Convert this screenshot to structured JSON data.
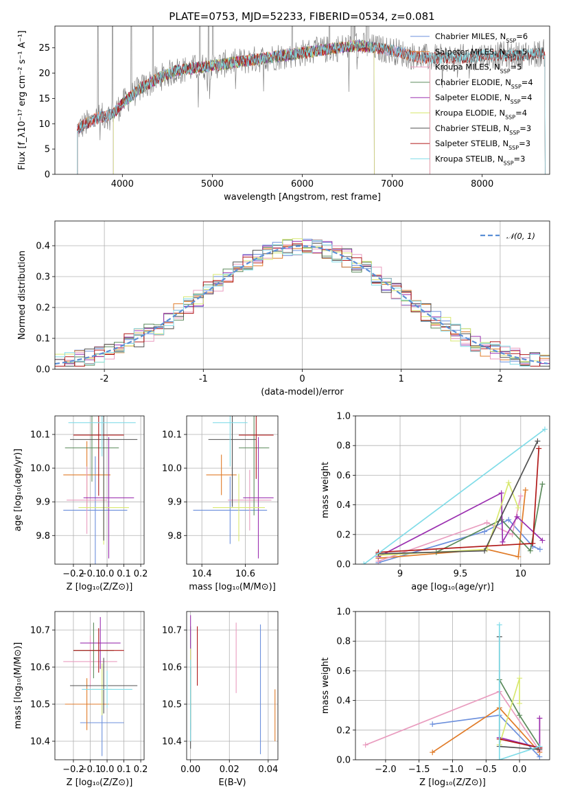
{
  "figure": {
    "title": "PLATE=0753, MJD=52233, FIBERID=0534, z=0.081"
  },
  "series_colors": {
    "Chabrier MILES": "#6b8fdc",
    "Salpeter MILES": "#e07b28",
    "Kroupa MILES": "#e99cbf",
    "Chabrier ELODIE": "#5a8a5a",
    "Salpeter ELODIE": "#9b30b0",
    "Kroupa ELODIE": "#d8e870",
    "Chabrier STELIB": "#505050",
    "Salpeter STELIB": "#b01818",
    "Kroupa STELIB": "#80dce8"
  },
  "chart_data": [
    {
      "id": "spectrum",
      "type": "line",
      "title": "PLATE=0753, MJD=52233, FIBERID=0534, z=0.081",
      "xlabel": "wavelength [Angstrom, rest frame]",
      "ylabel": "Flux [f_λ10⁻¹⁷ erg cm⁻² s⁻¹ A⁻¹]",
      "xlim": [
        3250,
        8750
      ],
      "ylim": [
        0,
        29.3
      ],
      "xticks": [
        4000,
        5000,
        6000,
        7000,
        8000
      ],
      "yticks": [
        0,
        5,
        10,
        15,
        20,
        25
      ],
      "grid": false,
      "legend_position": "right",
      "legend": [
        {
          "series": "Chabrier MILES",
          "label": "Chabrier MILES, N_SSP=6"
        },
        {
          "series": "Salpeter MILES",
          "label": "Salpeter MILES, N_SSP=5"
        },
        {
          "series": "Kroupa MILES",
          "label": "Kroupa MILES, N_SSP=5"
        },
        {
          "series": "Chabrier ELODIE",
          "label": "Chabrier ELODIE, N_SSP=4"
        },
        {
          "series": "Salpeter ELODIE",
          "label": "Salpeter ELODIE, N_SSP=4"
        },
        {
          "series": "Kroupa ELODIE",
          "label": "Kroupa ELODIE, N_SSP=4"
        },
        {
          "series": "Chabrier STELIB",
          "label": "Chabrier STELIB, N_SSP=3"
        },
        {
          "series": "Salpeter STELIB",
          "label": "Salpeter STELIB, N_SSP=3"
        },
        {
          "series": "Kroupa STELIB",
          "label": "Kroupa STELIB, N_SSP=3"
        }
      ],
      "continuum": {
        "x": [
          3500,
          3700,
          3900,
          4000,
          4200,
          4400,
          4600,
          4800,
          5000,
          5200,
          5400,
          5600,
          5800,
          6000,
          6200,
          6400,
          6600,
          6800,
          7000,
          7200,
          7400,
          7600,
          7800,
          8000,
          8200,
          8400,
          8700
        ],
        "y": [
          9,
          11,
          12,
          14,
          17,
          19,
          20.5,
          21,
          21.5,
          22,
          22.5,
          23,
          23.5,
          24,
          24.5,
          25,
          25.5,
          25,
          24.5,
          23.5,
          23,
          23,
          23,
          23.5,
          23.5,
          23.5,
          24
        ]
      },
      "observed_range": [
        3500,
        8700
      ],
      "model_ranges": {
        "Chabrier MILES": [
          3500,
          7420
        ],
        "Salpeter MILES": [
          3500,
          7420
        ],
        "Kroupa MILES": [
          3500,
          7420
        ],
        "Chabrier ELODIE": [
          3900,
          6800
        ],
        "Salpeter ELODIE": [
          3900,
          6800
        ],
        "Kroupa ELODIE": [
          3900,
          6800
        ],
        "Chabrier STELIB": [
          3500,
          8700
        ],
        "Salpeter STELIB": [
          3500,
          8700
        ],
        "Kroupa STELIB": [
          3500,
          8700
        ]
      },
      "emission_lines": [
        3727,
        3890,
        4102,
        4340,
        4861,
        4959,
        5007,
        5890,
        6300,
        6548,
        6563,
        6583,
        6717,
        6731
      ]
    },
    {
      "id": "residuals",
      "type": "histogram",
      "xlabel": "(data-model)/error",
      "ylabel": "Normed distribution",
      "xlim": [
        -2.5,
        2.5
      ],
      "ylim": [
        0,
        0.48
      ],
      "xticks": [
        -2,
        -1,
        0,
        1,
        2
      ],
      "yticks": [
        0.0,
        0.1,
        0.2,
        0.3,
        0.4
      ],
      "grid": true,
      "legend_position": "top-right",
      "reference_curve": {
        "label": "𝒩(0, 1)",
        "mean": 0,
        "sigma": 1,
        "style": "dashed",
        "color": "#5b8fd6"
      },
      "bin_width": 0.1
    },
    {
      "id": "age-vs-Z",
      "type": "errorbar",
      "xlabel": "Z [log₁₀(Z/Z⊙)]",
      "ylabel": "age  [log₁₀(age/yr)]",
      "xlim": [
        -0.31,
        0.22
      ],
      "ylim": [
        9.715,
        10.155
      ],
      "xticks": [
        -0.2,
        -0.1,
        0.0,
        0.1,
        0.2
      ],
      "xtick_labels": [
        "−0.2",
        "−0.1",
        "0.0",
        "0.1",
        "0.2"
      ],
      "yticks": [
        9.8,
        9.9,
        10.0,
        10.1
      ],
      "grid": true,
      "points": [
        {
          "series": "Chabrier MILES",
          "x": -0.07,
          "y": 9.875,
          "xerr": 0.19,
          "yerr": 0.16
        },
        {
          "series": "Salpeter MILES",
          "x": -0.12,
          "y": 9.98,
          "xerr": 0.14,
          "yerr": 0.1
        },
        {
          "series": "Kroupa MILES",
          "x": -0.12,
          "y": 9.905,
          "xerr": 0.12,
          "yerr": 0.1
        },
        {
          "series": "Chabrier ELODIE",
          "x": -0.09,
          "y": 10.06,
          "xerr": 0.16,
          "yerr": 0.1
        },
        {
          "series": "Salpeter ELODIE",
          "x": 0.01,
          "y": 9.912,
          "xerr": 0.15,
          "yerr": 0.18
        },
        {
          "series": "Kroupa ELODIE",
          "x": -0.02,
          "y": 9.883,
          "xerr": 0.15,
          "yerr": 0.11
        },
        {
          "series": "Chabrier STELIB",
          "x": -0.02,
          "y": 10.085,
          "xerr": 0.2,
          "yerr": 0.3
        },
        {
          "series": "Salpeter STELIB",
          "x": -0.05,
          "y": 10.098,
          "xerr": 0.15,
          "yerr": 0.18
        },
        {
          "series": "Kroupa STELIB",
          "x": -0.03,
          "y": 10.135,
          "xerr": 0.2,
          "yerr": 0.1
        }
      ]
    },
    {
      "id": "age-vs-mass",
      "type": "errorbar",
      "xlabel": "mass [log₁₀(M/M⊙)]",
      "xlim": [
        10.33,
        10.75
      ],
      "ylim": [
        9.715,
        10.155
      ],
      "xticks": [
        10.4,
        10.6
      ],
      "yticks": [
        9.8,
        9.9,
        10.0,
        10.1
      ],
      "grid": true,
      "points": [
        {
          "series": "Chabrier MILES",
          "x": 10.53,
          "y": 9.875,
          "xerr": 0.17,
          "yerr": 0.1
        },
        {
          "series": "Salpeter MILES",
          "x": 10.49,
          "y": 9.98,
          "xerr": 0.07,
          "yerr": 0.06
        },
        {
          "series": "Kroupa MILES",
          "x": 10.62,
          "y": 9.905,
          "xerr": 0.1,
          "yerr": 0.09
        },
        {
          "series": "Chabrier ELODIE",
          "x": 10.64,
          "y": 10.06,
          "xerr": 0.07,
          "yerr": 0.2
        },
        {
          "series": "Salpeter ELODIE",
          "x": 10.66,
          "y": 9.912,
          "xerr": 0.07,
          "yerr": 0.18
        },
        {
          "series": "Kroupa ELODIE",
          "x": 10.57,
          "y": 9.883,
          "xerr": 0.12,
          "yerr": 0.1
        },
        {
          "series": "Chabrier STELIB",
          "x": 10.54,
          "y": 10.085,
          "xerr": 0.11,
          "yerr": 0.2
        },
        {
          "series": "Salpeter STELIB",
          "x": 10.65,
          "y": 10.098,
          "xerr": 0.08,
          "yerr": 0.13
        },
        {
          "series": "Kroupa STELIB",
          "x": 10.53,
          "y": 10.135,
          "xerr": 0.08,
          "yerr": 0.13
        }
      ]
    },
    {
      "id": "mass-weight-vs-age",
      "type": "line",
      "xlabel": "age  [log₁₀(age/yr)]",
      "ylabel": "mass weight",
      "xlim": [
        8.63,
        10.24
      ],
      "ylim": [
        0.0,
        1.0
      ],
      "xticks": [
        9.0,
        9.5,
        10.0
      ],
      "yticks": [
        0.0,
        0.2,
        0.4,
        0.6,
        0.8,
        1.0
      ],
      "grid": true,
      "series": [
        {
          "name": "Chabrier MILES",
          "x": [
            8.82,
            9.7,
            9.9,
            10.1,
            10.16
          ],
          "y": [
            0.01,
            0.22,
            0.3,
            0.12,
            0.1
          ]
        },
        {
          "name": "Salpeter MILES",
          "x": [
            8.82,
            9.72,
            9.98,
            10.04
          ],
          "y": [
            0.04,
            0.1,
            0.05,
            0.5
          ]
        },
        {
          "name": "Kroupa MILES",
          "x": [
            8.82,
            9.72,
            9.93,
            10.0
          ],
          "y": [
            0.02,
            0.28,
            0.2,
            0.46
          ]
        },
        {
          "name": "Chabrier ELODIE",
          "x": [
            9.3,
            9.84,
            10.08,
            10.18
          ],
          "y": [
            0.08,
            0.3,
            0.09,
            0.54
          ]
        },
        {
          "name": "Salpeter ELODIE",
          "x": [
            8.82,
            9.84,
            9.85,
            9.97,
            10.18
          ],
          "y": [
            0.05,
            0.48,
            0.15,
            0.32,
            0.16
          ]
        },
        {
          "name": "Kroupa ELODIE",
          "x": [
            8.82,
            9.72,
            9.9,
            9.98
          ],
          "y": [
            0.06,
            0.1,
            0.55,
            0.38
          ]
        },
        {
          "name": "Chabrier STELIB",
          "x": [
            8.82,
            9.7,
            10.14
          ],
          "y": [
            0.07,
            0.09,
            0.83
          ]
        },
        {
          "name": "Salpeter STELIB",
          "x": [
            8.82,
            10.1,
            10.15
          ],
          "y": [
            0.08,
            0.14,
            0.78
          ]
        },
        {
          "name": "Kroupa STELIB",
          "x": [
            8.7,
            10.2
          ],
          "y": [
            0.0,
            0.91
          ]
        }
      ]
    },
    {
      "id": "mass-vs-Z",
      "type": "errorbar",
      "xlabel": "Z [log₁₀(Z/Z⊙)]",
      "ylabel": "mass [log₁₀(M/M⊙)]",
      "xlim": [
        -0.31,
        0.22
      ],
      "ylim": [
        10.35,
        10.75
      ],
      "xticks": [
        -0.2,
        -0.1,
        0.0,
        0.1,
        0.2
      ],
      "xtick_labels": [
        "−0.2",
        "−0.1",
        "0.0",
        "0.1",
        "0.2"
      ],
      "yticks": [
        10.4,
        10.5,
        10.6,
        10.7
      ],
      "grid": true,
      "points": [
        {
          "series": "Chabrier MILES",
          "x": -0.03,
          "y": 10.45,
          "xerr": 0.13,
          "yerr": 0.09
        },
        {
          "series": "Salpeter MILES",
          "x": -0.12,
          "y": 10.5,
          "xerr": 0.13,
          "yerr": 0.07
        },
        {
          "series": "Kroupa MILES",
          "x": -0.1,
          "y": 10.615,
          "xerr": 0.16,
          "yerr": 0.07
        },
        {
          "series": "Chabrier ELODIE",
          "x": -0.08,
          "y": 10.645,
          "xerr": 0.12,
          "yerr": 0.075
        },
        {
          "series": "Salpeter ELODIE",
          "x": -0.04,
          "y": 10.665,
          "xerr": 0.12,
          "yerr": 0.07
        },
        {
          "series": "Kroupa ELODIE",
          "x": -0.03,
          "y": 10.54,
          "xerr": 0.06,
          "yerr": 0.07
        },
        {
          "series": "Chabrier STELIB",
          "x": -0.02,
          "y": 10.55,
          "xerr": 0.2,
          "yerr": 0.075
        },
        {
          "series": "Salpeter STELIB",
          "x": -0.05,
          "y": 10.645,
          "xerr": 0.15,
          "yerr": 0.06
        },
        {
          "series": "Kroupa STELIB",
          "x": 0.0,
          "y": 10.54,
          "xerr": 0.15,
          "yerr": 0.05
        }
      ]
    },
    {
      "id": "mass-vs-ebv",
      "type": "errorbar",
      "xlabel": "E(B-V)",
      "xlim": [
        -0.002,
        0.045
      ],
      "ylim": [
        10.35,
        10.75
      ],
      "xticks": [
        0.0,
        0.02,
        0.04
      ],
      "xtick_labels": [
        "0.00",
        "0.02",
        "0.04"
      ],
      "yticks": [
        10.4,
        10.5,
        10.6,
        10.7
      ],
      "grid": true,
      "points": [
        {
          "series": "Chabrier MILES",
          "x": 0.036,
          "y": 10.54,
          "xerr": 0.0,
          "yerr": 0.175
        },
        {
          "series": "Salpeter MILES",
          "x": 0.0435,
          "y": 10.47,
          "xerr": 0.0,
          "yerr": 0.07
        },
        {
          "series": "Kroupa MILES",
          "x": 0.0235,
          "y": 10.625,
          "xerr": 0.0,
          "yerr": 0.095
        },
        {
          "series": "Chabrier ELODIE",
          "x": 0.0,
          "y": 10.57,
          "xerr": 0.0,
          "yerr": 0.14
        },
        {
          "series": "Salpeter ELODIE",
          "x": 0.0,
          "y": 10.66,
          "xerr": 0.0,
          "yerr": 0.08
        },
        {
          "series": "Kroupa ELODIE",
          "x": 0.0,
          "y": 10.55,
          "xerr": 0.0,
          "yerr": 0.1
        },
        {
          "series": "Chabrier STELIB",
          "x": 0.0,
          "y": 10.49,
          "xerr": 0.0,
          "yerr": 0.11
        },
        {
          "series": "Salpeter STELIB",
          "x": 0.0035,
          "y": 10.63,
          "xerr": 0.0,
          "yerr": 0.08
        },
        {
          "series": "Kroupa STELIB",
          "x": 0.0,
          "y": 10.51,
          "xerr": 0.0,
          "yerr": 0.11
        }
      ]
    },
    {
      "id": "mass-weight-vs-Z",
      "type": "line",
      "xlabel": "Z [log₁₀(Z/Z⊙)]",
      "ylabel": "mass weight",
      "xlim": [
        -2.45,
        0.45
      ],
      "ylim": [
        0.0,
        1.0
      ],
      "xticks": [
        -2.0,
        -1.5,
        -1.0,
        -0.5,
        0.0
      ],
      "xtick_labels": [
        "−2.0",
        "−1.5",
        "−1.0",
        "−0.5",
        "0.0"
      ],
      "yticks": [
        0.0,
        0.2,
        0.4,
        0.6,
        0.8,
        1.0
      ],
      "grid": true,
      "series": [
        {
          "name": "Chabrier MILES",
          "x": [
            -1.3,
            -0.3,
            0.3
          ],
          "y": [
            0.24,
            0.3,
            0.02
          ]
        },
        {
          "name": "Salpeter MILES",
          "x": [
            -1.3,
            -0.3,
            0.3,
            0.3
          ],
          "y": [
            0.05,
            0.35,
            0.05,
            0.08
          ]
        },
        {
          "name": "Kroupa MILES",
          "x": [
            -2.3,
            -0.3,
            0.3,
            0.3
          ],
          "y": [
            0.1,
            0.46,
            0.06,
            0.28
          ]
        },
        {
          "name": "Chabrier ELODIE",
          "x": [
            -0.3,
            0.0,
            0.3
          ],
          "y": [
            0.54,
            0.3,
            0.09
          ]
        },
        {
          "name": "Salpeter ELODIE",
          "x": [
            -0.3,
            0.3,
            0.3
          ],
          "y": [
            0.15,
            0.08,
            0.28
          ]
        },
        {
          "name": "Kroupa ELODIE",
          "x": [
            -0.3,
            0.0,
            0.0
          ],
          "y": [
            0.1,
            0.55,
            0.38
          ]
        },
        {
          "name": "Chabrier STELIB",
          "x": [
            -0.3,
            -0.3,
            0.3
          ],
          "y": [
            0.83,
            0.09,
            0.07
          ]
        },
        {
          "name": "Salpeter STELIB",
          "x": [
            -0.3,
            0.3
          ],
          "y": [
            0.14,
            0.08
          ]
        },
        {
          "name": "Kroupa STELIB",
          "x": [
            -0.3,
            -0.3,
            0.3
          ],
          "y": [
            0.91,
            0.0,
            0.09
          ]
        }
      ]
    }
  ]
}
